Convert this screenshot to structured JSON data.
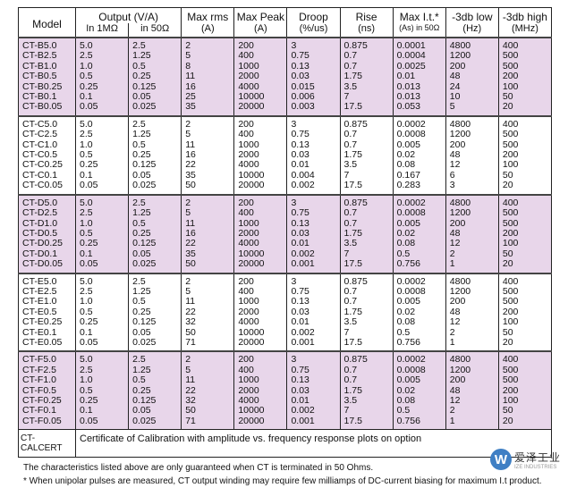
{
  "header": {
    "model": "Model",
    "output": "Output (V/A)",
    "in_1m": "In 1MΩ",
    "in_50": "in 50Ω",
    "max_rms": "Max rms",
    "max_rms_unit": "(A)",
    "max_peak": "Max Peak",
    "max_peak_unit": "(A)",
    "droop": "Droop",
    "droop_unit": "(%/us)",
    "rise": "Rise",
    "rise_unit": "(ns)",
    "max_it": "Max I.t.*",
    "max_it_unit": "(As) in 50Ω",
    "low": "-3db low",
    "low_unit": "(Hz)",
    "high": "-3db high",
    "high_unit": "(MHz)"
  },
  "groups": [
    {
      "rows": [
        [
          "CT-B5.0",
          "5.0",
          "2.5",
          "2",
          "200",
          "3",
          "0.875",
          "0.0001",
          "4800",
          "400"
        ],
        [
          "CT-B2.5",
          "2.5",
          "1.25",
          "5",
          "400",
          "0.75",
          "0.7",
          "0.0004",
          "1200",
          "500"
        ],
        [
          "CT-B1.0",
          "1.0",
          "0.5",
          "8",
          "1000",
          "0.13",
          "0.7",
          "0.0025",
          "200",
          "500"
        ],
        [
          "CT-B0.5",
          "0.5",
          "0.25",
          "11",
          "2000",
          "0.03",
          "1.75",
          "0.01",
          "48",
          "200"
        ],
        [
          "CT-B0.25",
          "0.25",
          "0.125",
          "16",
          "4000",
          "0.015",
          "3.5",
          "0.013",
          "24",
          "100"
        ],
        [
          "CT-B0.1",
          "0.1",
          "0.05",
          "25",
          "10000",
          "0.006",
          "7",
          "0.013",
          "10",
          "50"
        ],
        [
          "CT-B0.05",
          "0.05",
          "0.025",
          "35",
          "20000",
          "0.003",
          "17.5",
          "0.053",
          "5",
          "20"
        ]
      ]
    },
    {
      "rows": [
        [
          "CT-C5.0",
          "5.0",
          "2.5",
          "2",
          "200",
          "3",
          "0.875",
          "0.0002",
          "4800",
          "400"
        ],
        [
          "CT-C2.5",
          "2.5",
          "1.25",
          "5",
          "400",
          "0.75",
          "0.7",
          "0.0008",
          "1200",
          "500"
        ],
        [
          "CT-C1.0",
          "1.0",
          "0.5",
          "11",
          "1000",
          "0.13",
          "0.7",
          "0.005",
          "200",
          "500"
        ],
        [
          "CT-C0.5",
          "0.5",
          "0.25",
          "16",
          "2000",
          "0.03",
          "1.75",
          "0.02",
          "48",
          "200"
        ],
        [
          "CT-C0.25",
          "0.25",
          "0.125",
          "22",
          "4000",
          "0.01",
          "3.5",
          "0.08",
          "12",
          "100"
        ],
        [
          "CT-C0.1",
          "0.1",
          "0.05",
          "35",
          "10000",
          "0.004",
          "7",
          "0.167",
          "6",
          "50"
        ],
        [
          "CT-C0.05",
          "0.05",
          "0.025",
          "50",
          "20000",
          "0.002",
          "17.5",
          "0.283",
          "3",
          "20"
        ]
      ]
    },
    {
      "rows": [
        [
          "CT-D5.0",
          "5.0",
          "2.5",
          "2",
          "200",
          "3",
          "0.875",
          "0.0002",
          "4800",
          "400"
        ],
        [
          "CT-D2.5",
          "2.5",
          "1.25",
          "5",
          "400",
          "0.75",
          "0.7",
          "0.0008",
          "1200",
          "500"
        ],
        [
          "CT-D1.0",
          "1.0",
          "0.5",
          "11",
          "1000",
          "0.13",
          "0.7",
          "0.005",
          "200",
          "500"
        ],
        [
          "CT-D0.5",
          "0.5",
          "0.25",
          "16",
          "2000",
          "0.03",
          "1.75",
          "0.02",
          "48",
          "200"
        ],
        [
          "CT-D0.25",
          "0.25",
          "0.125",
          "22",
          "4000",
          "0.01",
          "3.5",
          "0.08",
          "12",
          "100"
        ],
        [
          "CT-D0.1",
          "0.1",
          "0.05",
          "35",
          "10000",
          "0.002",
          "7",
          "0.5",
          "2",
          "50"
        ],
        [
          "CT-D0.05",
          "0.05",
          "0.025",
          "50",
          "20000",
          "0.001",
          "17.5",
          "0.756",
          "1",
          "20"
        ]
      ]
    },
    {
      "rows": [
        [
          "CT-E5.0",
          "5.0",
          "2.5",
          "2",
          "200",
          "3",
          "0.875",
          "0.0002",
          "4800",
          "400"
        ],
        [
          "CT-E2.5",
          "2.5",
          "1.25",
          "5",
          "400",
          "0.75",
          "0.7",
          "0.0008",
          "1200",
          "500"
        ],
        [
          "CT-E1.0",
          "1.0",
          "0.5",
          "11",
          "1000",
          "0.13",
          "0.7",
          "0.005",
          "200",
          "500"
        ],
        [
          "CT-E0.5",
          "0.5",
          "0.25",
          "22",
          "2000",
          "0.03",
          "1.75",
          "0.02",
          "48",
          "200"
        ],
        [
          "CT-E0.25",
          "0.25",
          "0.125",
          "32",
          "4000",
          "0.01",
          "3.5",
          "0.08",
          "12",
          "100"
        ],
        [
          "CT-E0.1",
          "0.1",
          "0.05",
          "50",
          "10000",
          "0.002",
          "7",
          "0.5",
          "2",
          "50"
        ],
        [
          "CT-E0.05",
          "0.05",
          "0.025",
          "71",
          "20000",
          "0.001",
          "17.5",
          "0.756",
          "1",
          "20"
        ]
      ]
    },
    {
      "rows": [
        [
          "CT-F5.0",
          "5.0",
          "2.5",
          "2",
          "200",
          "3",
          "0.875",
          "0.0002",
          "4800",
          "400"
        ],
        [
          "CT-F2.5",
          "2.5",
          "1.25",
          "5",
          "400",
          "0.75",
          "0.7",
          "0.0008",
          "1200",
          "500"
        ],
        [
          "CT-F1.0",
          "1.0",
          "0.5",
          "11",
          "1000",
          "0.13",
          "0.7",
          "0.005",
          "200",
          "500"
        ],
        [
          "CT-F0.5",
          "0.5",
          "0.25",
          "22",
          "2000",
          "0.03",
          "1.75",
          "0.02",
          "48",
          "200"
        ],
        [
          "CT-F0.25",
          "0.25",
          "0.125",
          "32",
          "4000",
          "0.01",
          "3.5",
          "0.08",
          "12",
          "100"
        ],
        [
          "CT-F0.1",
          "0.1",
          "0.05",
          "50",
          "10000",
          "0.002",
          "7",
          "0.5",
          "2",
          "50"
        ],
        [
          "CT-F0.05",
          "0.05",
          "0.025",
          "71",
          "20000",
          "0.001",
          "17.5",
          "0.756",
          "1",
          "20"
        ]
      ]
    }
  ],
  "calcert": {
    "model": "CT-CALCERT",
    "description": "Certificate of Calibration with amplitude vs. frequency response plots on option"
  },
  "notes": [
    "The characteristics listed above are only guaranteed when CT is terminated in 50 Ohms.",
    "* When unipolar pulses are measured, CT output winding may require few milliamps of DC-current biasing for maximum I.t product."
  ],
  "logo": {
    "cn": "爱泽工业",
    "en": "IZE INDUSTRIES",
    "mark": "W"
  },
  "colors": {
    "shade": "#e8d6ea",
    "logo_blue": "#3f7fc4"
  }
}
